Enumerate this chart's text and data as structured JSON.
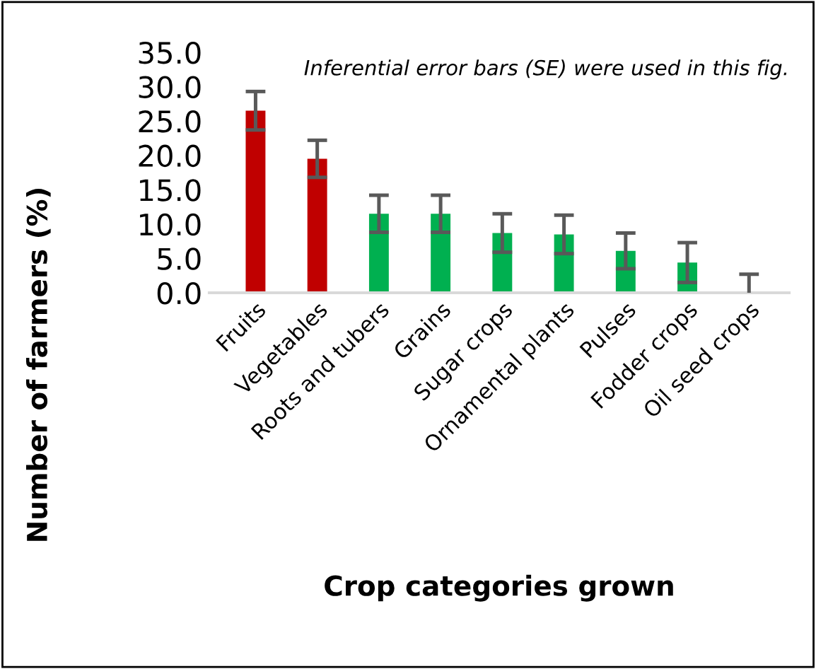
{
  "chart_data": {
    "type": "bar",
    "xlabel": "Crop categories grown",
    "ylabel": "Number of farmers (%)",
    "categories": [
      "Fruits",
      "Vegetables",
      "Roots and tubers",
      "Grains",
      "Sugar crops",
      "Ornamental plants",
      "Pulses",
      "Fodder crops",
      "Oil seed crops"
    ],
    "values": [
      26.5,
      19.5,
      11.5,
      11.5,
      8.7,
      8.5,
      6.1,
      4.4,
      0.1
    ],
    "errors": [
      2.8,
      2.7,
      2.7,
      2.7,
      2.8,
      2.8,
      2.6,
      2.9,
      2.6
    ],
    "colors": [
      "#c00000",
      "#c00000",
      "#00b050",
      "#00b050",
      "#00b050",
      "#00b050",
      "#00b050",
      "#00b050",
      "#00b050"
    ],
    "ylim": [
      0,
      35
    ],
    "yticks": [
      {
        "value": 0,
        "label": "0.0"
      },
      {
        "value": 5,
        "label": "5.0"
      },
      {
        "value": 10,
        "label": "10.0"
      },
      {
        "value": 15,
        "label": "15.0"
      },
      {
        "value": 20,
        "label": "20.0"
      },
      {
        "value": 25,
        "label": "25.0"
      },
      {
        "value": 30,
        "label": "30.0"
      },
      {
        "value": 35,
        "label": "35.0"
      }
    ],
    "grid": false,
    "annotations": [
      "Inferential error bars (SE) were used in this fig."
    ]
  }
}
